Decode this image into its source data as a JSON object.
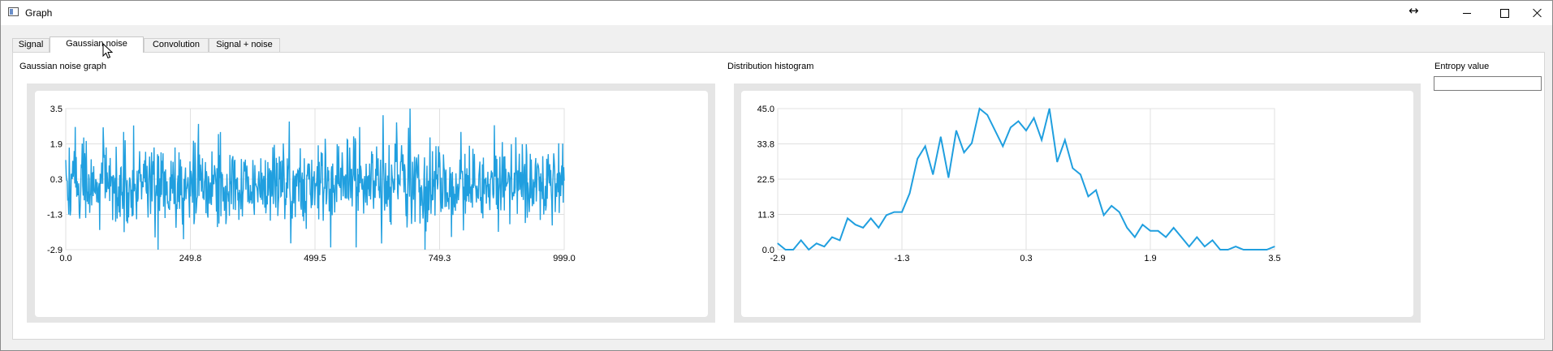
{
  "window": {
    "title": "Graph",
    "resize_indicator": "↔"
  },
  "tabs": [
    {
      "label": "Signal",
      "active": false
    },
    {
      "label": "Gaussian noise",
      "active": true
    },
    {
      "label": "Convolution",
      "active": false
    },
    {
      "label": "Signal + noise",
      "active": false
    }
  ],
  "panel": {
    "noise_graph_title": "Gaussian noise graph",
    "histogram_title": "Distribution histogram",
    "entropy_label": "Entropy value",
    "entropy_value": ""
  },
  "colors": {
    "series": "#209fdf",
    "grid": "#e0e0e0",
    "chart_background": "#e5e5e5"
  },
  "chart_data": [
    {
      "type": "line",
      "name": "noise",
      "x_ticks": [
        "0.0",
        "249.8",
        "499.5",
        "749.3",
        "999.0"
      ],
      "y_ticks": [
        "3.5",
        "1.9",
        "0.3",
        "-1.3",
        "-2.9"
      ],
      "xlim": [
        0,
        999
      ],
      "ylim": [
        -2.9,
        3.5
      ],
      "n_points": 1000,
      "sample_count": 1000,
      "distribution": "gaussian, mean ≈ 0, sd ≈ 1, max 3.5 near x≈690, min -2.9 near x≈185 and x≈720",
      "grid": true,
      "legend": "none"
    },
    {
      "type": "line",
      "name": "histogram",
      "x_ticks": [
        "-2.9",
        "-1.3",
        "0.3",
        "1.9",
        "3.5"
      ],
      "y_ticks": [
        "45.0",
        "33.8",
        "22.5",
        "11.3",
        "0.0"
      ],
      "xlim": [
        -2.9,
        3.5
      ],
      "ylim": [
        0,
        45
      ],
      "x": [
        -2.9,
        -2.8,
        -2.7,
        -2.6,
        -2.5,
        -2.4,
        -2.3,
        -2.2,
        -2.1,
        -2.0,
        -1.9,
        -1.8,
        -1.7,
        -1.6,
        -1.5,
        -1.4,
        -1.3,
        -1.2,
        -1.1,
        -1.0,
        -0.9,
        -0.8,
        -0.7,
        -0.6,
        -0.5,
        -0.4,
        -0.3,
        -0.2,
        -0.1,
        0.0,
        0.1,
        0.2,
        0.3,
        0.4,
        0.5,
        0.6,
        0.7,
        0.8,
        0.9,
        1.0,
        1.1,
        1.2,
        1.3,
        1.4,
        1.5,
        1.6,
        1.7,
        1.8,
        1.9,
        2.0,
        2.1,
        2.2,
        2.3,
        2.4,
        2.5,
        2.6,
        2.7,
        2.8,
        2.9,
        3.0,
        3.1,
        3.2,
        3.3,
        3.4,
        3.5
      ],
      "values": [
        2,
        0,
        0,
        3,
        0,
        2,
        1,
        4,
        3,
        10,
        8,
        7,
        10,
        7,
        11,
        12,
        12,
        18,
        29,
        33,
        24,
        36,
        23,
        38,
        31,
        34,
        45,
        43,
        38,
        33,
        39,
        41,
        38,
        42,
        35,
        45,
        28,
        35,
        26,
        24,
        17,
        19,
        11,
        14,
        12,
        7,
        4,
        8,
        6,
        6,
        4,
        7,
        4,
        1,
        4,
        1,
        3,
        0,
        0,
        1,
        0,
        0,
        0,
        0,
        1
      ],
      "grid": true,
      "legend": "none"
    }
  ]
}
